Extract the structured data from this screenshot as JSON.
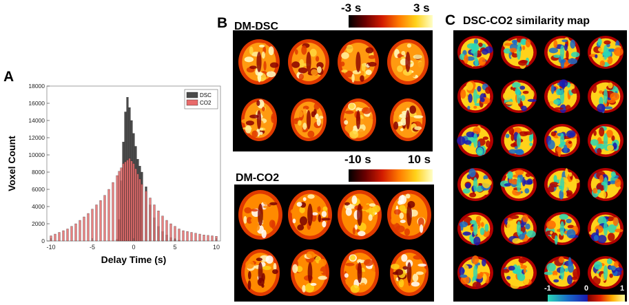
{
  "panels": {
    "a_letter": "A",
    "b_letter": "B",
    "c_letter": "C"
  },
  "chart_data": {
    "type": "bar",
    "xlabel": "Delay Time (s)",
    "ylabel": "Voxel Count",
    "xlim": [
      -10.5,
      10.5
    ],
    "ylim": [
      0,
      18000
    ],
    "x_ticks": [
      "-10",
      "-5",
      "0",
      "5",
      "10"
    ],
    "y_ticks": [
      "0",
      "2000",
      "4000",
      "6000",
      "8000",
      "10000",
      "12000",
      "14000",
      "16000",
      "18000"
    ],
    "legend_position": "top-right",
    "series": [
      {
        "name": "DSC",
        "color": "#4a4a4a",
        "x": [
          -10,
          -9.5,
          -9,
          -8.5,
          -8,
          -7.5,
          -7,
          -6.5,
          -6,
          -5.5,
          -5,
          -4.5,
          -4,
          -3.5,
          -3,
          -2.5,
          -2,
          -1.75,
          -1.5,
          -1.25,
          -1,
          -0.75,
          -0.5,
          -0.25,
          0,
          0.25,
          0.5,
          0.75,
          1,
          1.5,
          2,
          2.5,
          3,
          3.5,
          4,
          4.5,
          5,
          5.5,
          6,
          6.5,
          7,
          7.5,
          8,
          8.5,
          9,
          9.5,
          10
        ],
        "values": [
          0,
          0,
          0,
          0,
          0,
          0,
          0,
          0,
          0,
          0,
          0,
          0,
          0,
          0,
          0,
          0,
          200,
          2500,
          7000,
          11500,
          15000,
          16700,
          15500,
          14000,
          12500,
          11000,
          9500,
          8700,
          8000,
          6300,
          4200,
          2700,
          1700,
          1100,
          700,
          400,
          200,
          100,
          0,
          0,
          0,
          0,
          0,
          0,
          0,
          0,
          0
        ]
      },
      {
        "name": "CO2",
        "color": "#e86a6a",
        "x": [
          -10,
          -9.5,
          -9,
          -8.5,
          -8,
          -7.5,
          -7,
          -6.5,
          -6,
          -5.5,
          -5,
          -4.5,
          -4,
          -3.5,
          -3,
          -2.5,
          -2,
          -1.75,
          -1.5,
          -1.25,
          -1,
          -0.75,
          -0.5,
          -0.25,
          0,
          0.25,
          0.5,
          0.75,
          1,
          1.5,
          2,
          2.5,
          3,
          3.5,
          4,
          4.5,
          5,
          5.5,
          6,
          6.5,
          7,
          7.5,
          8,
          8.5,
          9,
          9.5,
          10
        ],
        "values": [
          600,
          800,
          1000,
          1200,
          1400,
          1700,
          2000,
          2400,
          2800,
          3200,
          3700,
          4200,
          4700,
          5300,
          6000,
          6800,
          7600,
          8100,
          8500,
          9000,
          9200,
          9400,
          9600,
          9300,
          9000,
          8400,
          7800,
          7200,
          6600,
          5800,
          5000,
          4200,
          3500,
          2900,
          2400,
          2000,
          1700,
          1400,
          1200,
          1100,
          1000,
          900,
          800,
          700,
          650,
          600,
          550
        ]
      }
    ]
  },
  "panel_b": {
    "title_dsc": "DM-DSC",
    "cbar_dsc_min": "-3 s",
    "cbar_dsc_max": "3 s",
    "title_co2": "DM-CO2",
    "cbar_co2_min": "-10 s",
    "cbar_co2_max": "10 s",
    "colormap_hot": [
      "#000000",
      "#6b0000",
      "#d21b00",
      "#ff7a00",
      "#ffd21a",
      "#ffffc8"
    ]
  },
  "panel_c": {
    "title": "DSC-CO2 similarity map",
    "cbar_min": "-1",
    "cbar_mid": "0",
    "cbar_max": "1",
    "colors_negative": [
      "#2ad6b5",
      "#1a6cc8",
      "#1a1ab0"
    ],
    "colors_positive": [
      "#7a0000",
      "#e02000",
      "#ffb000",
      "#ffffa0"
    ]
  }
}
